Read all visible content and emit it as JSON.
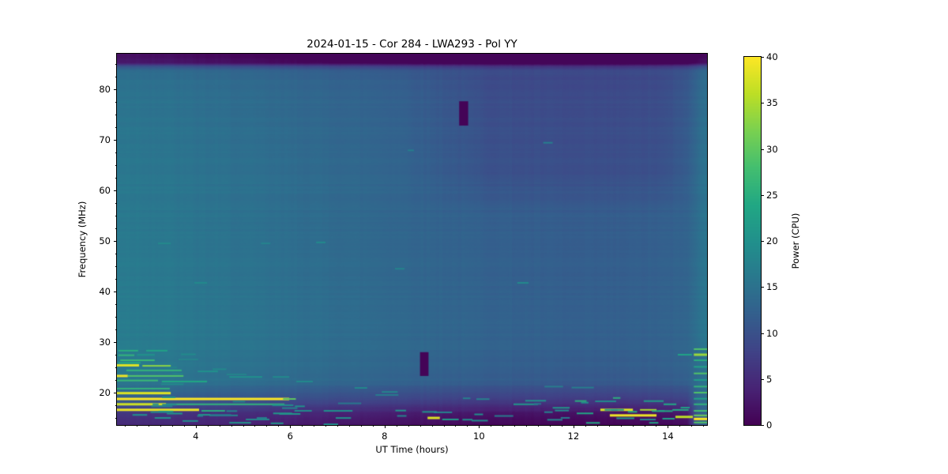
{
  "figure": {
    "title": "2024-01-15 - Cor 284 - LWA293 - Pol YY",
    "background_color": "#ffffff"
  },
  "axes": {
    "x_label": "UT Time (hours)",
    "y_label": "Frequency (MHz)",
    "x_range": [
      2.33,
      14.83
    ],
    "y_range": [
      13.6,
      87.0
    ],
    "x_major_ticks": [
      4,
      6,
      8,
      10,
      12,
      14
    ],
    "x_minor_step": 0.25,
    "y_major_ticks": [
      20,
      30,
      40,
      50,
      60,
      70,
      80
    ],
    "y_minor_step": 2.5
  },
  "colorbar": {
    "label": "Power (CPU)",
    "range": [
      0,
      40
    ],
    "ticks": [
      0,
      5,
      10,
      15,
      20,
      25,
      30,
      35,
      40
    ],
    "colormap": "viridis"
  },
  "chart_data": {
    "type": "heatmap",
    "title": "2024-01-15 - Cor 284 - LWA293 - Pol YY",
    "xlabel": "UT Time (hours)",
    "ylabel": "Frequency (MHz)",
    "x_range_hours": [
      2.33,
      14.83
    ],
    "y_range_mhz": [
      13.6,
      87.0
    ],
    "value_range": [
      0,
      40
    ],
    "colormap": "viridis",
    "grid": false,
    "background_time_profile": [
      [
        2.33,
        16.2
      ],
      [
        3.2,
        15.8
      ],
      [
        4,
        15.3
      ],
      [
        5,
        14.8
      ],
      [
        6,
        14.2
      ],
      [
        7,
        13.7
      ],
      [
        8,
        13.2
      ],
      [
        9,
        12.7
      ],
      [
        10,
        12.2
      ],
      [
        11,
        11.8
      ],
      [
        12,
        11.5
      ],
      [
        13,
        11.6
      ],
      [
        13.8,
        11.9
      ],
      [
        14.3,
        12.3
      ],
      [
        14.55,
        13.4
      ],
      [
        14.68,
        14.8
      ],
      [
        14.83,
        15.4
      ]
    ],
    "freq_adjust_profile": [
      [
        13.6,
        -11.2
      ],
      [
        15,
        -10.6
      ],
      [
        16,
        -9.6
      ],
      [
        17,
        -7.8
      ],
      [
        18,
        -5.8
      ],
      [
        19,
        -4.2
      ],
      [
        20,
        -3.0
      ],
      [
        21,
        -1.8
      ],
      [
        22,
        -0.7
      ],
      [
        23,
        -0.2
      ],
      [
        25,
        0.2
      ],
      [
        30,
        0.6
      ],
      [
        35,
        0.6
      ],
      [
        40,
        0.4
      ],
      [
        50,
        0.1
      ],
      [
        60,
        0
      ],
      [
        70,
        -0.3
      ],
      [
        78,
        -0.6
      ],
      [
        82,
        -1.2
      ],
      [
        83.8,
        -2.0
      ],
      [
        84.6,
        -6
      ],
      [
        85.3,
        -13.5
      ],
      [
        87,
        -14.5
      ]
    ],
    "right_edge_bottom_relief": {
      "t_start": 14.4,
      "t_full": 14.62,
      "f_below": 30,
      "reduction": 0.7
    },
    "upper_right_dip": {
      "amp": -1.8,
      "t_ramp": [
        8.3,
        10.2,
        13.9,
        14.7
      ],
      "f_ramp": [
        55,
        63,
        82,
        85
      ]
    },
    "top_dark_band": {
      "f_start": 85.3,
      "approx_value": 1.2
    },
    "dropouts": [
      {
        "t0": 9.58,
        "t1": 9.77,
        "f0": 72.8,
        "f1": 77.6,
        "value": 0.4
      },
      {
        "t0": 8.75,
        "t1": 8.93,
        "f0": 23.3,
        "f1": 28.0,
        "value": 0.4
      }
    ],
    "rfi_streaks_t0_t1_f_v_h": [
      [
        2.36,
        2.78,
        28.3,
        25,
        2
      ],
      [
        2.95,
        3.4,
        28.3,
        23,
        2
      ],
      [
        2.36,
        2.7,
        27.4,
        26,
        2
      ],
      [
        2.4,
        3.13,
        26.4,
        27,
        2
      ],
      [
        2.36,
        2.83,
        25.9,
        24,
        2
      ],
      [
        2.33,
        2.8,
        25.4,
        38,
        3
      ],
      [
        2.87,
        3.47,
        25.3,
        33,
        2
      ],
      [
        2.53,
        3.7,
        24.4,
        26,
        2
      ],
      [
        4.04,
        4.47,
        24.2,
        20,
        2
      ],
      [
        2.33,
        2.56,
        23.3,
        39,
        3
      ],
      [
        2.56,
        3.74,
        23.3,
        29,
        2
      ],
      [
        4.71,
        5.41,
        23.1,
        20,
        2
      ],
      [
        5.63,
        5.98,
        23.1,
        19,
        2
      ],
      [
        2.33,
        3.2,
        22.4,
        27,
        2
      ],
      [
        3.28,
        4.24,
        22.2,
        24,
        2
      ],
      [
        6.13,
        6.48,
        22.2,
        19,
        2
      ],
      [
        2.33,
        3.45,
        20.8,
        26,
        2
      ],
      [
        2.33,
        3.47,
        19.9,
        38,
        3
      ],
      [
        2.33,
        5.98,
        18.75,
        40,
        3
      ],
      [
        5.85,
        6.12,
        18.75,
        30,
        2
      ],
      [
        2.33,
        3.37,
        17.7,
        37,
        3
      ],
      [
        3.37,
        5.88,
        17.7,
        26,
        2
      ],
      [
        2.33,
        4.07,
        16.6,
        39,
        3
      ],
      [
        4.12,
        4.62,
        16.4,
        25,
        2
      ],
      [
        6.1,
        6.31,
        17.3,
        20,
        2
      ],
      [
        6.71,
        7.32,
        16.4,
        20,
        2
      ],
      [
        2.66,
        2.97,
        15.6,
        20,
        2
      ],
      [
        3.13,
        3.47,
        15.0,
        20,
        2
      ],
      [
        3.72,
        4.05,
        14.4,
        19,
        2
      ],
      [
        4.29,
        4.89,
        15.5,
        18,
        2
      ],
      [
        5.06,
        5.56,
        14.7,
        19,
        2
      ],
      [
        8.91,
        9.17,
        15.0,
        38,
        3
      ],
      [
        9.22,
        9.57,
        14.7,
        22,
        2
      ],
      [
        10.73,
        11.25,
        17.7,
        21,
        2
      ],
      [
        11.56,
        11.92,
        17.0,
        21,
        2
      ],
      [
        12.07,
        12.42,
        15.9,
        24,
        2
      ],
      [
        12.57,
        13.26,
        16.6,
        38,
        3
      ],
      [
        13.41,
        13.76,
        16.6,
        35,
        2
      ],
      [
        12.77,
        13.76,
        15.5,
        39,
        3
      ],
      [
        14.16,
        14.53,
        15.2,
        36,
        3
      ],
      [
        13.91,
        14.18,
        17.7,
        24,
        2
      ],
      [
        10.98,
        11.42,
        18.4,
        20,
        2
      ],
      [
        14.21,
        14.51,
        27.5,
        23,
        2
      ],
      [
        14.55,
        14.83,
        28.6,
        29,
        2
      ],
      [
        14.55,
        14.83,
        27.5,
        34,
        3
      ],
      [
        14.55,
        14.83,
        26.4,
        25,
        2
      ],
      [
        14.55,
        14.83,
        25.1,
        23,
        2
      ],
      [
        14.55,
        14.83,
        23.8,
        29,
        2
      ],
      [
        14.55,
        14.83,
        22.5,
        22,
        2
      ],
      [
        14.55,
        14.83,
        21.2,
        26,
        2
      ],
      [
        14.55,
        14.83,
        20.0,
        29,
        2
      ],
      [
        14.55,
        14.83,
        18.8,
        23,
        2
      ],
      [
        14.55,
        14.83,
        17.7,
        26,
        2
      ],
      [
        14.55,
        14.83,
        16.4,
        28,
        2
      ],
      [
        14.55,
        14.83,
        15.5,
        31,
        2
      ],
      [
        14.55,
        14.83,
        14.8,
        40,
        3
      ],
      [
        14.55,
        14.83,
        14.1,
        29,
        2
      ],
      [
        3.2,
        3.47,
        49.5,
        19,
        2
      ],
      [
        5.38,
        5.58,
        49.5,
        18,
        2
      ],
      [
        3.97,
        4.24,
        41.7,
        19,
        2
      ],
      [
        10.81,
        11.05,
        41.7,
        19,
        2
      ],
      [
        11.36,
        11.56,
        69.4,
        17,
        2
      ],
      [
        8.22,
        8.42,
        44.5,
        18,
        2
      ],
      [
        6.55,
        6.75,
        49.7,
        19,
        2
      ],
      [
        8.49,
        8.62,
        67.9,
        17,
        2
      ]
    ],
    "scatter_bands": [
      {
        "t": [
          2.4,
          6.6
        ],
        "f": [
          13.8,
          19.5
        ],
        "n": 20,
        "v": [
          16,
          22
        ],
        "len": [
          0.12,
          0.5
        ]
      },
      {
        "t": [
          6.6,
          12.0
        ],
        "f": [
          13.7,
          16.5
        ],
        "n": 14,
        "v": [
          16,
          21
        ],
        "len": [
          0.12,
          0.4
        ]
      },
      {
        "t": [
          12.0,
          14.5
        ],
        "f": [
          13.8,
          19.0
        ],
        "n": 16,
        "v": [
          18,
          26
        ],
        "len": [
          0.12,
          0.45
        ]
      },
      {
        "t": [
          2.4,
          5.5
        ],
        "f": [
          20.5,
          28.0
        ],
        "n": 8,
        "v": [
          17,
          21
        ],
        "len": [
          0.15,
          0.5
        ]
      },
      {
        "t": [
          6.0,
          14.0
        ],
        "f": [
          17.5,
          21.5
        ],
        "n": 10,
        "v": [
          15,
          19
        ],
        "len": [
          0.15,
          0.5
        ]
      }
    ],
    "noise": {
      "seed": 42,
      "row_amp": 0.35,
      "col_amp": 0.25,
      "pixel_amp": 0.1
    }
  }
}
